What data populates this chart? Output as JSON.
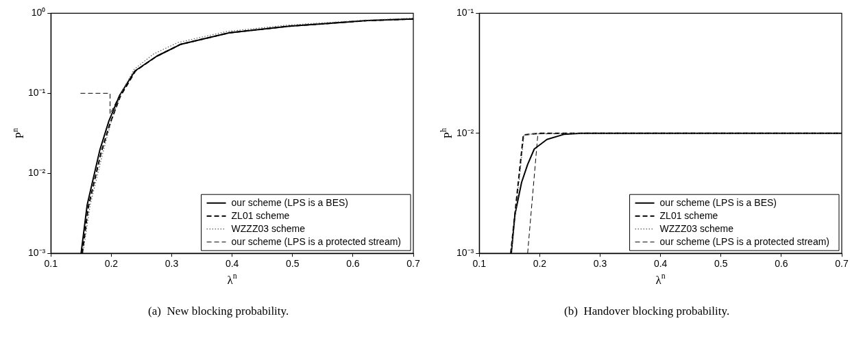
{
  "chart_data": [
    {
      "type": "line",
      "title": "(a)  New blocking probability.",
      "xlabel": "λ$^{n}$",
      "ylabel": "P$^{n}$",
      "log": "y",
      "legend": "bottom right",
      "xlim": [
        0.1,
        0.7
      ],
      "xticks": [
        0.1,
        0.2,
        0.3,
        0.4,
        0.5,
        0.6,
        0.7
      ],
      "ylim": [
        0.001,
        1
      ],
      "yticks": [
        {
          "value": 0.001,
          "label": "10⁻³"
        },
        {
          "value": 0.01,
          "label": "10⁻²"
        },
        {
          "value": 0.1,
          "label": "10⁻¹"
        },
        {
          "value": 1,
          "label": "10⁰"
        }
      ],
      "series": [
        {
          "name": "our scheme (LPS is a BES)",
          "color": "#000000",
          "line_style": "solid",
          "x": [
            0.15,
            0.16,
            0.181,
            0.196,
            0.214,
            0.239,
            0.275,
            0.315,
            0.395,
            0.495,
            0.624,
            0.7
          ],
          "values": [
            0.001,
            0.004,
            0.0195,
            0.045,
            0.095,
            0.19,
            0.29,
            0.41,
            0.57,
            0.69,
            0.81,
            0.85
          ]
        },
        {
          "name": "ZL01 scheme",
          "color": "#000000",
          "line_style": "dashed",
          "x": [
            0.152,
            0.162,
            0.183,
            0.198,
            0.215,
            0.24,
            0.275,
            0.315,
            0.395,
            0.495,
            0.624,
            0.7
          ],
          "values": [
            0.001,
            0.0038,
            0.018,
            0.042,
            0.092,
            0.19,
            0.29,
            0.41,
            0.57,
            0.69,
            0.81,
            0.85
          ]
        },
        {
          "name": "WZZZ03 scheme",
          "color": "#555555",
          "line_style": "dotted",
          "x": [
            0.153,
            0.165,
            0.186,
            0.2,
            0.216,
            0.238,
            0.27,
            0.31,
            0.39,
            0.49,
            0.62,
            0.7
          ],
          "values": [
            0.001,
            0.004,
            0.018,
            0.045,
            0.1,
            0.2,
            0.31,
            0.43,
            0.59,
            0.71,
            0.82,
            0.87
          ]
        },
        {
          "name": "our scheme (LPS is a protected stream)",
          "color": "#000000",
          "line_style": "dashed",
          "x": [
            0.149,
            0.198,
            0.198,
            0.214,
            0.239,
            0.275,
            0.315,
            0.395,
            0.495,
            0.624,
            0.7
          ],
          "values": [
            0.1,
            0.1,
            0.055,
            0.095,
            0.19,
            0.29,
            0.41,
            0.57,
            0.69,
            0.81,
            0.85
          ]
        }
      ]
    },
    {
      "type": "line",
      "title": "(b)  Handover blocking probability.",
      "xlabel": "λ$^{n}$",
      "ylabel": "P$^{h}$",
      "log": "y",
      "legend": "bottom right",
      "xlim": [
        0.1,
        0.7
      ],
      "xticks": [
        0.1,
        0.2,
        0.3,
        0.4,
        0.5,
        0.6,
        0.7
      ],
      "ylim": [
        0.001,
        0.1
      ],
      "yticks": [
        {
          "value": 0.001,
          "label": "10⁻³"
        },
        {
          "value": 0.01,
          "label": "10⁻²"
        },
        {
          "value": 0.1,
          "label": "10⁻¹"
        }
      ],
      "series": [
        {
          "name": "our scheme (LPS is a BES)",
          "color": "#000000",
          "line_style": "solid",
          "x": [
            0.153,
            0.159,
            0.17,
            0.18,
            0.191,
            0.212,
            0.24,
            0.27,
            0.7
          ],
          "values": [
            0.001,
            0.0021,
            0.0039,
            0.0055,
            0.0074,
            0.0089,
            0.0098,
            0.01,
            0.01
          ]
        },
        {
          "name": "ZL01 scheme",
          "color": "#000000",
          "line_style": "dashed",
          "x": [
            0.152,
            0.173,
            0.2,
            0.7
          ],
          "values": [
            0.001,
            0.0097,
            0.01,
            0.01
          ]
        },
        {
          "name": "WZZZ03 scheme",
          "color": "#555555",
          "line_style": "dotted",
          "x": [
            0.153,
            0.174,
            0.2,
            0.7
          ],
          "values": [
            0.001,
            0.0097,
            0.01,
            0.01
          ]
        },
        {
          "name": "our scheme (LPS is a protected stream)",
          "color": "#000000",
          "line_style": "dashed",
          "x": [
            0.18,
            0.197,
            0.7
          ],
          "values": [
            0.001,
            0.0099,
            0.01
          ]
        }
      ]
    }
  ]
}
